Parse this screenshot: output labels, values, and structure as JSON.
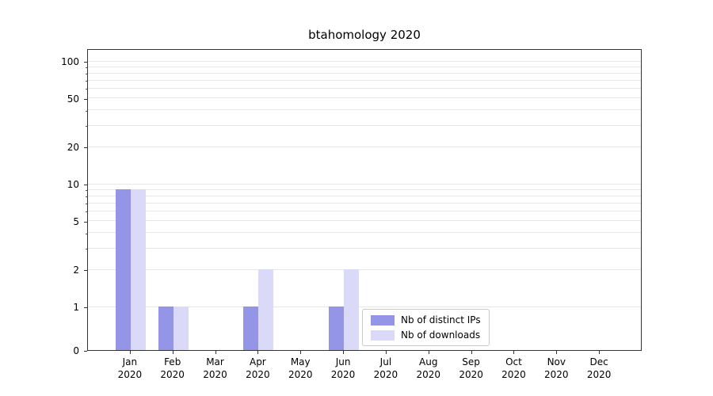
{
  "chart_data": {
    "type": "bar",
    "title": "btahomology 2020",
    "categories": [
      {
        "month": "Jan",
        "year": "2020"
      },
      {
        "month": "Feb",
        "year": "2020"
      },
      {
        "month": "Mar",
        "year": "2020"
      },
      {
        "month": "Apr",
        "year": "2020"
      },
      {
        "month": "May",
        "year": "2020"
      },
      {
        "month": "Jun",
        "year": "2020"
      },
      {
        "month": "Jul",
        "year": "2020"
      },
      {
        "month": "Aug",
        "year": "2020"
      },
      {
        "month": "Sep",
        "year": "2020"
      },
      {
        "month": "Oct",
        "year": "2020"
      },
      {
        "month": "Nov",
        "year": "2020"
      },
      {
        "month": "Dec",
        "year": "2020"
      }
    ],
    "series": [
      {
        "name": "Nb of distinct IPs",
        "color": "#9595e8",
        "values": [
          9,
          1,
          0,
          1,
          0,
          1,
          0,
          0,
          0,
          0,
          0,
          0
        ]
      },
      {
        "name": "Nb of downloads",
        "color": "#dadaf8",
        "values": [
          9,
          1,
          0,
          2,
          0,
          2,
          0,
          0,
          0,
          0,
          0,
          0
        ]
      }
    ],
    "y_axis": {
      "scale": "symlog",
      "range": [
        0,
        100
      ],
      "ticks": [
        0,
        1,
        2,
        5,
        10,
        20,
        50,
        100
      ],
      "gridlines": [
        1,
        2,
        3,
        4,
        5,
        6,
        7,
        8,
        9,
        10,
        20,
        30,
        40,
        50,
        60,
        70,
        80,
        90,
        100
      ]
    },
    "legend": {
      "position": "lower center"
    },
    "grid": true
  }
}
